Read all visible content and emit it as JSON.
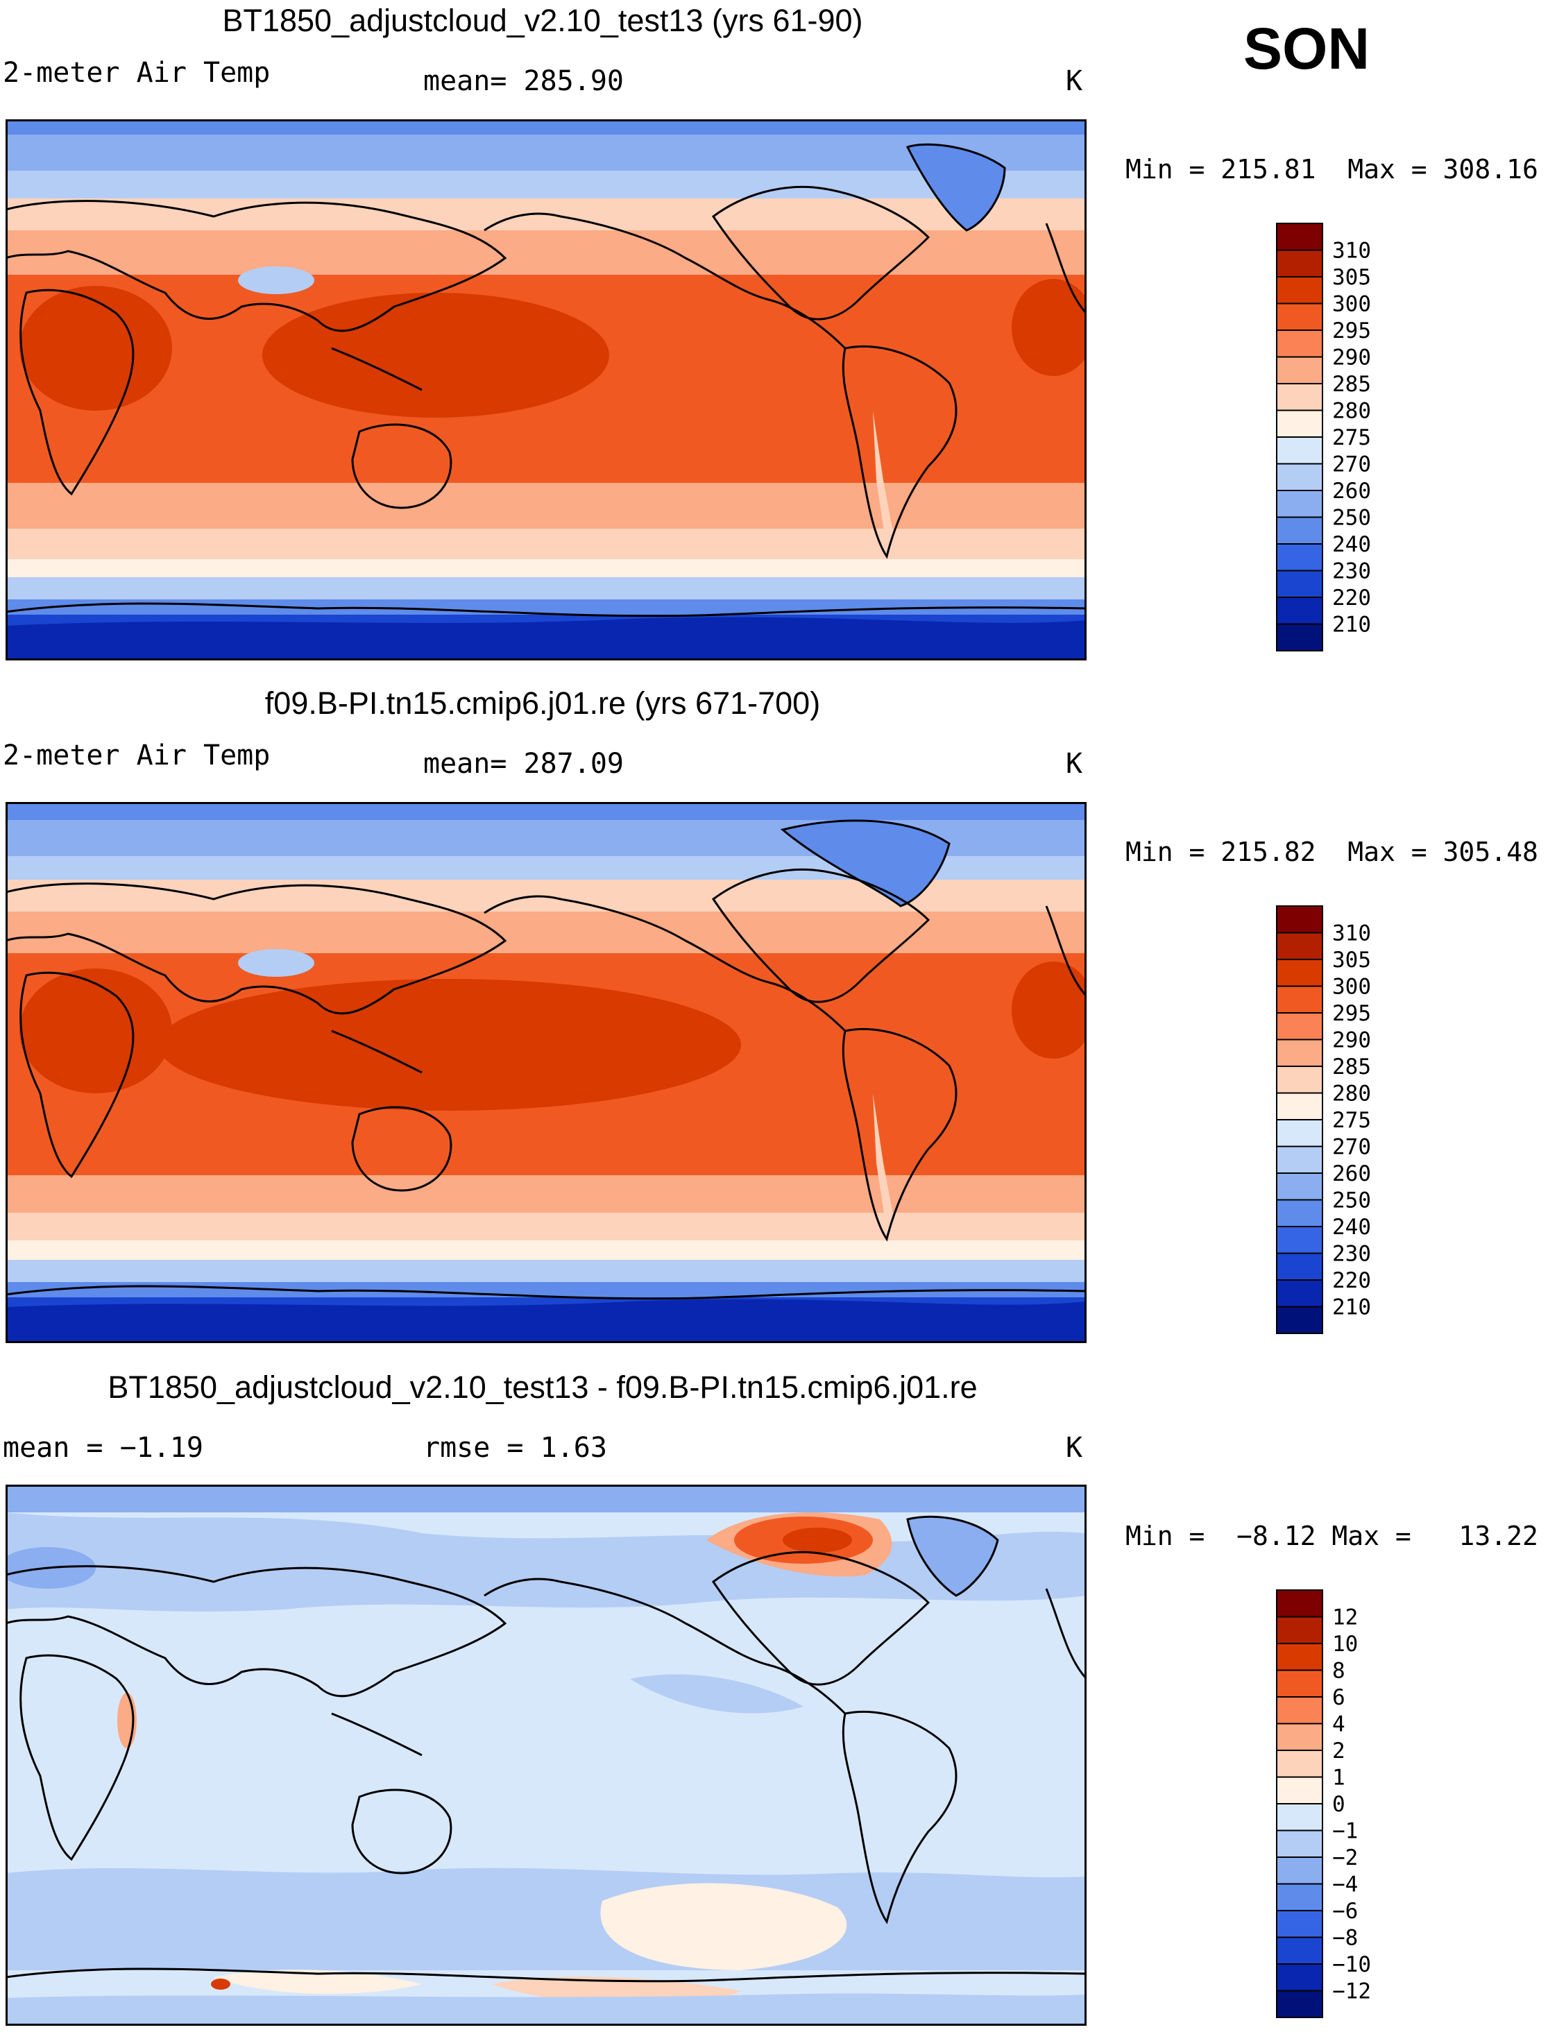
{
  "season": "SON",
  "panels": [
    {
      "id": "test",
      "title": "BT1850_adjustcloud_v2.10_test13 (yrs 61-90)",
      "left_text": "2-meter Air Temp",
      "mid_text": "mean=  285.90",
      "units": "K",
      "minmax": "Min = 215.81  Max = 308.16",
      "colorbar": {
        "labels": [
          "310",
          "305",
          "300",
          "295",
          "290",
          "285",
          "280",
          "275",
          "270",
          "260",
          "250",
          "240",
          "230",
          "220",
          "210"
        ],
        "colors": [
          "#7f0000",
          "#b22000",
          "#d83a00",
          "#f05a22",
          "#fa8254",
          "#fbab85",
          "#fdd3bb",
          "#fff1e3",
          "#d8e8fb",
          "#b4cdf5",
          "#8aaef0",
          "#5f8ceb",
          "#3565e4",
          "#1a45d0",
          "#0826b0",
          "#00127a"
        ]
      }
    },
    {
      "id": "control",
      "title": "f09.B-PI.tn15.cmip6.j01.re (yrs 671-700)",
      "left_text": "2-meter Air Temp",
      "mid_text": "mean=  287.09",
      "units": "K",
      "minmax": "Min = 215.82  Max = 305.48",
      "colorbar": {
        "labels": [
          "310",
          "305",
          "300",
          "295",
          "290",
          "285",
          "280",
          "275",
          "270",
          "260",
          "250",
          "240",
          "230",
          "220",
          "210"
        ],
        "colors": [
          "#7f0000",
          "#b22000",
          "#d83a00",
          "#f05a22",
          "#fa8254",
          "#fbab85",
          "#fdd3bb",
          "#fff1e3",
          "#d8e8fb",
          "#b4cdf5",
          "#8aaef0",
          "#5f8ceb",
          "#3565e4",
          "#1a45d0",
          "#0826b0",
          "#00127a"
        ]
      }
    },
    {
      "id": "diff",
      "title": "BT1850_adjustcloud_v2.10_test13 - f09.B-PI.tn15.cmip6.j01.re",
      "left_text": "mean =   −1.19",
      "mid_text": "rmse =    1.63",
      "units": "K",
      "minmax": "Min =  −8.12 Max =   13.22",
      "colorbar": {
        "labels": [
          "12",
          "10",
          "8",
          "6",
          "4",
          "2",
          "1",
          "0",
          "−1",
          "−2",
          "−4",
          "−6",
          "−8",
          "−10",
          "−12"
        ],
        "colors": [
          "#7f0000",
          "#b22000",
          "#d83a00",
          "#f05a22",
          "#fa8254",
          "#fbab85",
          "#fdd3bb",
          "#fff1e3",
          "#d8e8fb",
          "#b4cdf5",
          "#8aaef0",
          "#5f8ceb",
          "#3565e4",
          "#1a45d0",
          "#0826b0",
          "#00127a"
        ]
      }
    }
  ]
}
